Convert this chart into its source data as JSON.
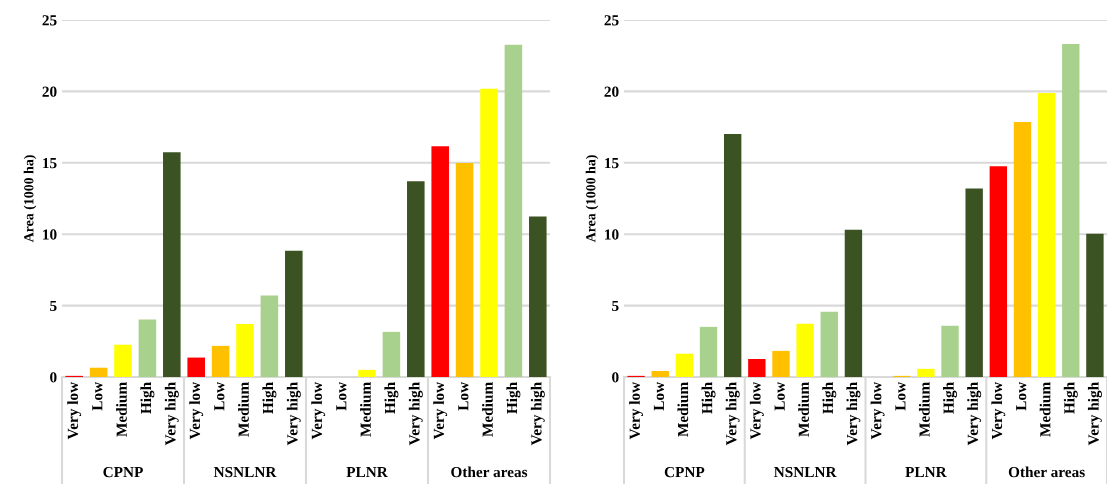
{
  "chart_data": [
    {
      "type": "bar",
      "ylabel": "Area (1000 ha)",
      "categories": [
        "Very low",
        "Low",
        "Medium",
        "High",
        "Very high",
        "Very low",
        "Low",
        "Medium",
        "High",
        "Very high",
        "Very low",
        "Low",
        "Medium",
        "High",
        "Very high",
        "Very low",
        "Low",
        "Medium",
        "High",
        "Very high"
      ],
      "values": [
        0.08,
        0.65,
        2.26,
        4.02,
        15.74,
        1.36,
        2.18,
        3.71,
        5.7,
        8.84,
        0,
        0,
        0.5,
        3.16,
        13.7,
        16.16,
        14.98,
        20.18,
        23.27,
        11.24
      ],
      "colors": [
        "#ff0000",
        "#ffc000",
        "#ffff00",
        "#a9d18e",
        "#3b5323",
        "#ff0000",
        "#ffc000",
        "#ffff00",
        "#a9d18e",
        "#3b5323",
        "#ff0000",
        "#ffc000",
        "#ffff00",
        "#a9d18e",
        "#3b5323",
        "#ff0000",
        "#ffc000",
        "#ffff00",
        "#a9d18e",
        "#3b5323"
      ],
      "annotations": [
        "CPNP",
        "NSNLNR",
        "PLNR",
        "Other areas"
      ],
      "ylim": [
        0,
        25
      ],
      "yticks": [
        0,
        5,
        10,
        15,
        20,
        25
      ],
      "grid": "y",
      "legend": false
    },
    {
      "type": "bar",
      "ylabel": "Area (1000 ha)",
      "categories": [
        "Very low",
        "Low",
        "Medium",
        "High",
        "Very high",
        "Very low",
        "Low",
        "Medium",
        "High",
        "Very high",
        "Very low",
        "Low",
        "Medium",
        "High",
        "Very high",
        "Very low",
        "Low",
        "Medium",
        "High",
        "Very high"
      ],
      "values": [
        0.08,
        0.42,
        1.63,
        3.51,
        17.01,
        1.26,
        1.83,
        3.73,
        4.57,
        10.31,
        0,
        0.08,
        0.57,
        3.59,
        13.2,
        14.76,
        17.85,
        19.88,
        23.32,
        10.04
      ],
      "colors": [
        "#ff0000",
        "#ffc000",
        "#ffff00",
        "#a9d18e",
        "#3b5323",
        "#ff0000",
        "#ffc000",
        "#ffff00",
        "#a9d18e",
        "#3b5323",
        "#ff0000",
        "#ffc000",
        "#ffff00",
        "#a9d18e",
        "#3b5323",
        "#ff0000",
        "#ffc000",
        "#ffff00",
        "#a9d18e",
        "#3b5323"
      ],
      "annotations": [
        "CPNP",
        "NSNLNR",
        "PLNR",
        "Other areas"
      ],
      "ylim": [
        0,
        25
      ],
      "yticks": [
        0,
        5,
        10,
        15,
        20,
        25
      ],
      "grid": "y",
      "legend": false
    }
  ]
}
